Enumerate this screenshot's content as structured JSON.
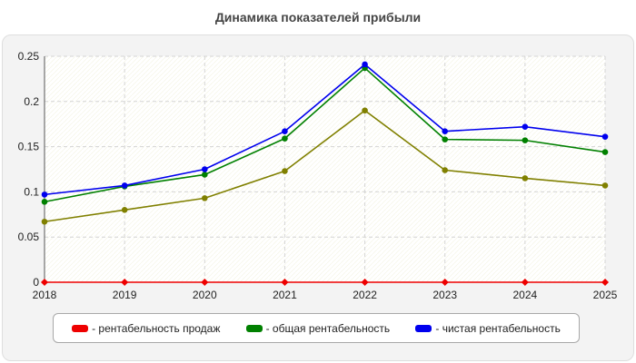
{
  "chart_data": {
    "type": "line",
    "title": "Динамика показателей прибыли",
    "xlabel": "",
    "ylabel": "",
    "categories": [
      "2018",
      "2019",
      "2020",
      "2021",
      "2022",
      "2023",
      "2024",
      "2025"
    ],
    "y_ticks": [
      "0",
      "0.05",
      "0.1",
      "0.15",
      "0.2",
      "0.25"
    ],
    "ylim": [
      0,
      0.25
    ],
    "grid": true,
    "legend_position": "bottom",
    "series": [
      {
        "name": "- рентабельность продаж",
        "color": "#ee0000",
        "values": [
          0,
          0,
          0,
          0,
          0,
          0,
          0,
          0
        ]
      },
      {
        "name": "- общая рентабельность",
        "color": "#008000",
        "values": [
          0.089,
          0.106,
          0.119,
          0.159,
          0.237,
          0.158,
          0.157,
          0.144
        ]
      },
      {
        "name": "- чистая рентабельность",
        "color": "#0000ee",
        "values": [
          0.097,
          0.107,
          0.125,
          0.167,
          0.241,
          0.167,
          0.172,
          0.161
        ]
      },
      {
        "color": "#808000",
        "values": [
          0.067,
          0.08,
          0.093,
          0.123,
          0.19,
          0.124,
          0.115,
          0.107
        ]
      }
    ]
  }
}
